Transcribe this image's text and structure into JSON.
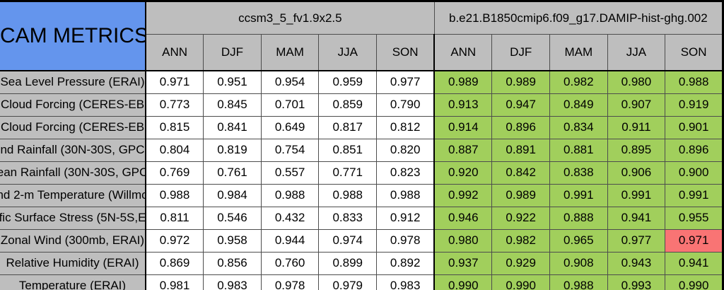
{
  "table": {
    "corner_title": "CAM METRICS",
    "groups": [
      {
        "name": "ccsm3_5_fv1.9x2.5",
        "seasons": [
          "ANN",
          "DJF",
          "MAM",
          "JJA",
          "SON"
        ]
      },
      {
        "name": "b.e21.B1850cmip6.f09_g17.DAMIP-hist-ghg.002",
        "seasons": [
          "ANN",
          "DJF",
          "MAM",
          "JJA",
          "SON"
        ]
      }
    ],
    "rows": [
      {
        "label": "Sea Level Pressure (ERAI)",
        "model1": [
          "0.971",
          "0.951",
          "0.954",
          "0.959",
          "0.977"
        ],
        "model2": [
          "0.989",
          "0.989",
          "0.982",
          "0.980",
          "0.988"
        ]
      },
      {
        "label": "Cloud Forcing (CERES-EB",
        "model1": [
          "0.773",
          "0.845",
          "0.701",
          "0.859",
          "0.790"
        ],
        "model2": [
          "0.913",
          "0.947",
          "0.849",
          "0.907",
          "0.919"
        ]
      },
      {
        "label": "Cloud Forcing (CERES-EB",
        "model1": [
          "0.815",
          "0.841",
          "0.649",
          "0.817",
          "0.812"
        ],
        "model2": [
          "0.914",
          "0.896",
          "0.834",
          "0.911",
          "0.901"
        ]
      },
      {
        "label": "nd Rainfall (30N-30S, GPC",
        "model1": [
          "0.804",
          "0.819",
          "0.754",
          "0.851",
          "0.820"
        ],
        "model2": [
          "0.887",
          "0.891",
          "0.881",
          "0.895",
          "0.896"
        ]
      },
      {
        "label": "ean Rainfall (30N-30S, GPC",
        "model1": [
          "0.769",
          "0.761",
          "0.557",
          "0.771",
          "0.823"
        ],
        "model2": [
          "0.920",
          "0.842",
          "0.838",
          "0.906",
          "0.900"
        ]
      },
      {
        "label": "nd 2-m Temperature (Willmo",
        "model1": [
          "0.988",
          "0.984",
          "0.988",
          "0.988",
          "0.988"
        ],
        "model2": [
          "0.992",
          "0.989",
          "0.991",
          "0.991",
          "0.991"
        ]
      },
      {
        "label": "fic Surface Stress (5N-5S,E",
        "model1": [
          "0.811",
          "0.546",
          "0.432",
          "0.833",
          "0.912"
        ],
        "model2": [
          "0.946",
          "0.922",
          "0.888",
          "0.941",
          "0.955"
        ]
      },
      {
        "label": "Zonal Wind (300mb, ERAI)",
        "model1": [
          "0.972",
          "0.958",
          "0.944",
          "0.974",
          "0.978"
        ],
        "model2": [
          "0.980",
          "0.982",
          "0.965",
          "0.977",
          "0.971"
        ]
      },
      {
        "label": "Relative Humidity (ERAI)",
        "model1": [
          "0.869",
          "0.856",
          "0.760",
          "0.899",
          "0.892"
        ],
        "model2": [
          "0.937",
          "0.929",
          "0.908",
          "0.943",
          "0.941"
        ]
      },
      {
        "label": "Temperature (ERAI)",
        "model1": [
          "0.981",
          "0.983",
          "0.978",
          "0.979",
          "0.983"
        ],
        "model2": [
          "0.990",
          "0.990",
          "0.988",
          "0.993",
          "0.990"
        ]
      }
    ],
    "red_cells": [
      {
        "row": 7,
        "group": 2,
        "col": 4
      }
    ]
  },
  "colors": {
    "title_blue": "#6495ED",
    "header_gray": "#BEBEBE",
    "good_green": "#A1CF5C",
    "bad_red": "#F97474",
    "cell_white": "#FFFFFF",
    "grid_line": "#4d4d4d",
    "frame": "#000000",
    "text": "#000000"
  },
  "chart_data": {
    "type": "table",
    "title": "CAM METRICS",
    "column_groups": [
      "ccsm3_5_fv1.9x2.5",
      "b.e21.B1850cmip6.f09_g17.DAMIP-hist-ghg.002"
    ],
    "columns": [
      "ANN",
      "DJF",
      "MAM",
      "JJA",
      "SON",
      "ANN",
      "DJF",
      "MAM",
      "JJA",
      "SON"
    ],
    "rows": [
      {
        "label": "Sea Level Pressure (ERAI)",
        "values": [
          0.971,
          0.951,
          0.954,
          0.959,
          0.977,
          0.989,
          0.989,
          0.982,
          0.98,
          0.988
        ]
      },
      {
        "label": "Cloud Forcing (CERES-EB",
        "values": [
          0.773,
          0.845,
          0.701,
          0.859,
          0.79,
          0.913,
          0.947,
          0.849,
          0.907,
          0.919
        ]
      },
      {
        "label": "Cloud Forcing (CERES-EB",
        "values": [
          0.815,
          0.841,
          0.649,
          0.817,
          0.812,
          0.914,
          0.896,
          0.834,
          0.911,
          0.901
        ]
      },
      {
        "label": "nd Rainfall (30N-30S, GPC",
        "values": [
          0.804,
          0.819,
          0.754,
          0.851,
          0.82,
          0.887,
          0.891,
          0.881,
          0.895,
          0.896
        ]
      },
      {
        "label": "ean Rainfall (30N-30S, GPC",
        "values": [
          0.769,
          0.761,
          0.557,
          0.771,
          0.823,
          0.92,
          0.842,
          0.838,
          0.906,
          0.9
        ]
      },
      {
        "label": "nd 2-m Temperature (Willmo",
        "values": [
          0.988,
          0.984,
          0.988,
          0.988,
          0.988,
          0.992,
          0.989,
          0.991,
          0.991,
          0.991
        ]
      },
      {
        "label": "fic Surface Stress (5N-5S,E",
        "values": [
          0.811,
          0.546,
          0.432,
          0.833,
          0.912,
          0.946,
          0.922,
          0.888,
          0.941,
          0.955
        ]
      },
      {
        "label": "Zonal Wind (300mb, ERAI)",
        "values": [
          0.972,
          0.958,
          0.944,
          0.974,
          0.978,
          0.98,
          0.982,
          0.965,
          0.977,
          0.971
        ]
      },
      {
        "label": "Relative Humidity (ERAI)",
        "values": [
          0.869,
          0.856,
          0.76,
          0.899,
          0.892,
          0.937,
          0.929,
          0.908,
          0.943,
          0.941
        ]
      },
      {
        "label": "Temperature (ERAI)",
        "values": [
          0.981,
          0.983,
          0.978,
          0.979,
          0.983,
          0.99,
          0.99,
          0.988,
          0.993,
          0.99
        ]
      }
    ],
    "highlight_cells": [
      {
        "row_label": "Zonal Wind (300mb, ERAI)",
        "column_group": "b.e21.B1850cmip6.f09_g17.DAMIP-hist-ghg.002",
        "column": "SON",
        "value": 0.971,
        "color": "red"
      }
    ],
    "legend_hint": "green = second model cells, red = flagged worse value, white = first model cells"
  }
}
